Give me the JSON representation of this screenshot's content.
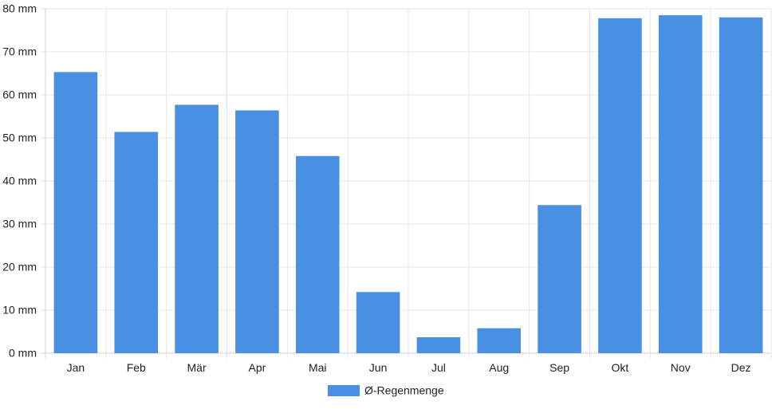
{
  "chart_data": {
    "type": "bar",
    "categories": [
      "Jan",
      "Feb",
      "Mär",
      "Apr",
      "Mai",
      "Jun",
      "Jul",
      "Aug",
      "Sep",
      "Okt",
      "Nov",
      "Dez"
    ],
    "series": [
      {
        "name": "Ø-Regenmenge",
        "values": [
          65.3,
          51.4,
          57.7,
          56.4,
          45.8,
          14.2,
          3.7,
          5.8,
          34.4,
          77.8,
          78.5,
          78.0
        ],
        "color": "#4a90e2"
      }
    ],
    "y_ticks": [
      "0 mm",
      "10 mm",
      "20 mm",
      "30 mm",
      "40 mm",
      "50 mm",
      "60 mm",
      "70 mm",
      "80 mm"
    ],
    "ylim": [
      0,
      80
    ],
    "grid": true,
    "legend_position": "bottom"
  },
  "colors": {
    "bar": "#4a90e2",
    "grid": "#e6e6e6",
    "axis": "#d0d0d0",
    "text": "#222222"
  }
}
